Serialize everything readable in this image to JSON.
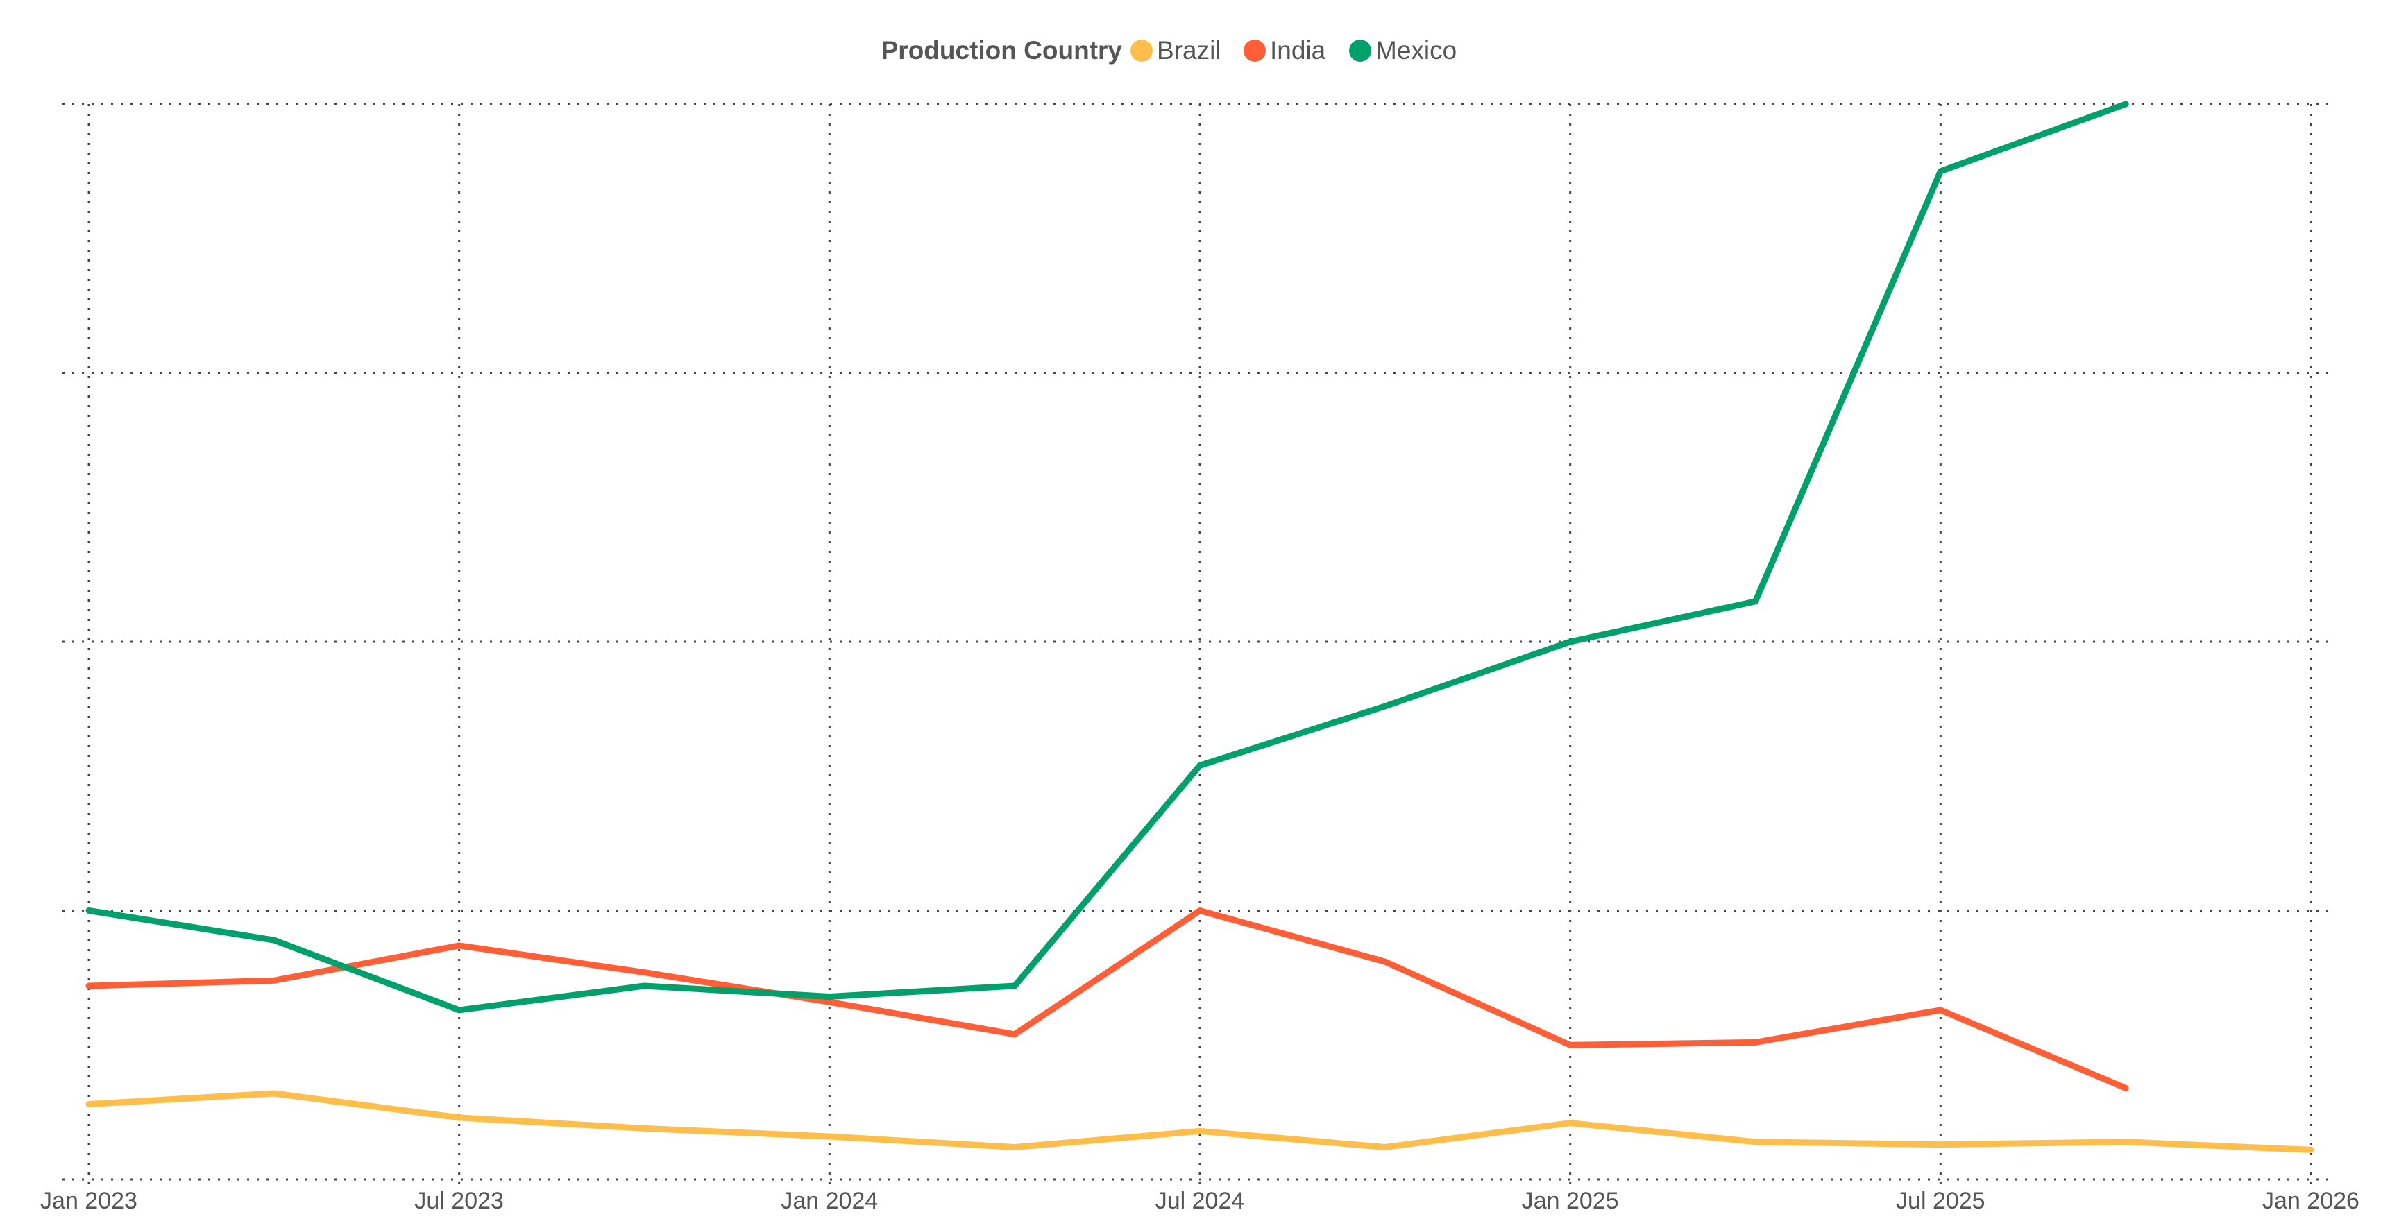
{
  "chart_data": {
    "type": "line",
    "legend_title": "Production Country",
    "legend_position": "top-center",
    "grid": true,
    "x_ticks": [
      "Jan 2023",
      "Jul 2023",
      "Jan 2024",
      "Jul 2024",
      "Jan 2025",
      "Jul 2025",
      "Jan 2026"
    ],
    "x": [
      "2023-01",
      "2023-04",
      "2023-07",
      "2023-10",
      "2024-01",
      "2024-04",
      "2024-07",
      "2024-10",
      "2025-01",
      "2025-04",
      "2025-07",
      "2025-10",
      "2026-01"
    ],
    "y_tick_count": 5,
    "series": [
      {
        "name": "Brazil",
        "color": "#FFBE4A",
        "values": [
          1.28,
          1.32,
          1.23,
          1.19,
          1.16,
          1.12,
          1.18,
          1.12,
          1.21,
          1.14,
          1.13,
          1.14,
          1.11
        ]
      },
      {
        "name": "India",
        "color": "#FF5E36",
        "values": [
          1.72,
          1.74,
          1.87,
          1.77,
          1.66,
          1.54,
          2.0,
          1.81,
          1.5,
          1.51,
          1.63,
          1.34,
          null
        ]
      },
      {
        "name": "Mexico",
        "color": "#00A06A",
        "values": [
          2.0,
          1.89,
          1.63,
          1.72,
          1.68,
          1.72,
          2.54,
          2.76,
          3.0,
          3.15,
          4.75,
          5.0,
          null
        ]
      }
    ],
    "ylim": [
      1.0,
      5.0
    ]
  }
}
